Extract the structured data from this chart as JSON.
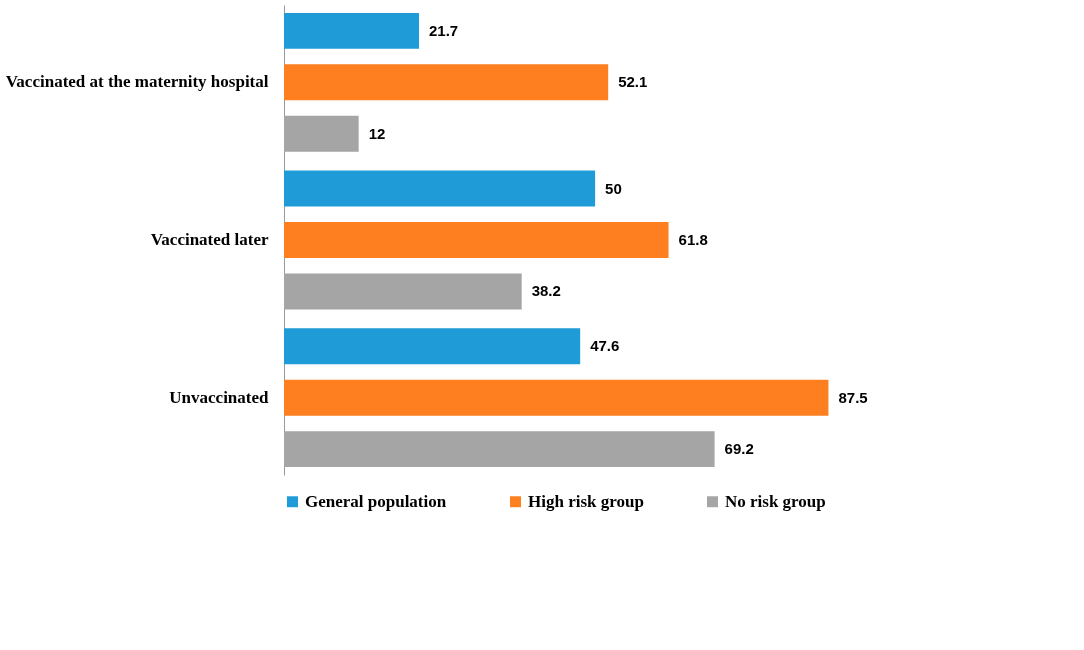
{
  "chart_data": {
    "type": "bar",
    "orientation": "horizontal",
    "categories": [
      "Vaccinated at the maternity hospital",
      "Vaccinated later",
      "Unvaccinated"
    ],
    "series": [
      {
        "name": "General population",
        "color": "#1f9bd7",
        "values": [
          21.7,
          50,
          47.6
        ]
      },
      {
        "name": "High risk group",
        "color": "#fd7f20",
        "values": [
          52.1,
          61.8,
          87.5
        ]
      },
      {
        "name": "No risk group",
        "color": "#a5a5a5",
        "values": [
          12,
          38.2,
          69.2
        ]
      }
    ],
    "data_labels": true,
    "legend": "bottom"
  }
}
